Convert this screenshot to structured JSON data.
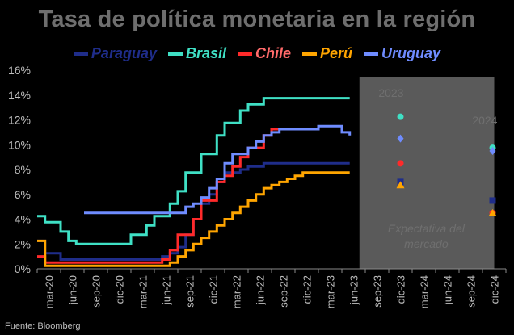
{
  "chart_data": {
    "type": "line",
    "title": "Tasa de política monetaria en la región",
    "source": "Fuente: Bloomberg",
    "xlabel": "",
    "ylabel": "",
    "ylim": [
      0,
      16
    ],
    "yticks": [
      "0%",
      "2%",
      "4%",
      "6%",
      "8%",
      "10%",
      "12%",
      "14%",
      "16%"
    ],
    "x_tick_labels": [
      "mar-20",
      "jun-20",
      "sep-20",
      "dic-20",
      "mar-21",
      "jun-21",
      "sep-21",
      "dic-21",
      "mar-22",
      "jun-22",
      "sep-22",
      "dic-22",
      "mar-23",
      "jun-23",
      "sep-23",
      "dic-23",
      "mar-24",
      "jun-24",
      "sep-24",
      "dic-24"
    ],
    "colors": {
      "Paraguay": "#1f2d8a",
      "Brasil": "#3fe0c5",
      "Chile": "#ff2a2a",
      "Perú": "#ffa500",
      "Uruguay": "#6f8cff"
    },
    "series": [
      {
        "name": "Paraguay",
        "points": [
          [
            0,
            2.25
          ],
          [
            1,
            1.25
          ],
          [
            3,
            0.75
          ],
          [
            12,
            0.75
          ],
          [
            15,
            0.75
          ],
          [
            16,
            1.0
          ],
          [
            17,
            1.25
          ],
          [
            18,
            1.75
          ],
          [
            19,
            2.75
          ],
          [
            20,
            4.0
          ],
          [
            21,
            5.25
          ],
          [
            22,
            6.0
          ],
          [
            23,
            7.0
          ],
          [
            24,
            7.75
          ],
          [
            26,
            8.0
          ],
          [
            27,
            8.25
          ],
          [
            29,
            8.5
          ],
          [
            40,
            8.5
          ]
        ]
      },
      {
        "name": "Brasil",
        "points": [
          [
            0,
            4.25
          ],
          [
            1,
            3.75
          ],
          [
            3,
            3.0
          ],
          [
            4,
            2.25
          ],
          [
            5,
            2.0
          ],
          [
            11,
            2.0
          ],
          [
            12,
            2.75
          ],
          [
            14,
            3.5
          ],
          [
            15,
            4.25
          ],
          [
            17,
            5.25
          ],
          [
            18,
            6.25
          ],
          [
            19,
            7.75
          ],
          [
            21,
            9.25
          ],
          [
            23,
            10.75
          ],
          [
            24,
            11.75
          ],
          [
            26,
            12.75
          ],
          [
            27,
            13.25
          ],
          [
            29,
            13.75
          ],
          [
            40,
            13.75
          ]
        ]
      },
      {
        "name": "Chile",
        "points": [
          [
            0,
            1.0
          ],
          [
            1,
            0.5
          ],
          [
            15,
            0.5
          ],
          [
            16,
            0.75
          ],
          [
            17,
            1.5
          ],
          [
            18,
            2.75
          ],
          [
            20,
            4.0
          ],
          [
            21,
            5.5
          ],
          [
            23,
            7.0
          ],
          [
            24,
            7.5
          ],
          [
            25,
            8.25
          ],
          [
            26,
            9.0
          ],
          [
            27,
            9.75
          ],
          [
            29,
            10.75
          ],
          [
            30,
            11.25
          ],
          [
            36,
            11.25
          ]
        ]
      },
      {
        "name": "Perú",
        "points": [
          [
            0,
            2.25
          ],
          [
            1,
            0.25
          ],
          [
            16,
            0.25
          ],
          [
            17,
            0.5
          ],
          [
            18,
            1.0
          ],
          [
            19,
            1.5
          ],
          [
            20,
            2.0
          ],
          [
            21,
            2.5
          ],
          [
            22,
            3.0
          ],
          [
            23,
            3.5
          ],
          [
            24,
            4.0
          ],
          [
            25,
            4.5
          ],
          [
            26,
            5.0
          ],
          [
            27,
            5.5
          ],
          [
            28,
            6.0
          ],
          [
            29,
            6.5
          ],
          [
            30,
            6.75
          ],
          [
            31,
            7.0
          ],
          [
            32,
            7.25
          ],
          [
            33,
            7.5
          ],
          [
            34,
            7.75
          ],
          [
            40,
            7.75
          ]
        ]
      },
      {
        "name": "Uruguay",
        "points": [
          [
            6,
            4.5
          ],
          [
            18,
            4.5
          ],
          [
            19,
            5.0
          ],
          [
            20,
            5.25
          ],
          [
            21,
            5.75
          ],
          [
            22,
            6.5
          ],
          [
            23,
            7.25
          ],
          [
            24,
            8.5
          ],
          [
            25,
            9.25
          ],
          [
            27,
            9.75
          ],
          [
            28,
            10.25
          ],
          [
            29,
            10.75
          ],
          [
            30,
            11.0
          ],
          [
            31,
            11.25
          ],
          [
            36,
            11.5
          ],
          [
            39,
            11.0
          ],
          [
            40,
            10.75
          ]
        ]
      }
    ],
    "expectations_box": {
      "label": "Expectativa del mercado",
      "years": [
        "2023",
        "2024"
      ]
    },
    "expectations_2023": [
      {
        "name": "Brasil",
        "value": 12.25,
        "marker": "circle"
      },
      {
        "name": "Uruguay",
        "value": 10.5,
        "marker": "diamond"
      },
      {
        "name": "Chile",
        "value": 8.5,
        "marker": "circle"
      },
      {
        "name": "Paraguay",
        "value": 7.0,
        "marker": "square"
      },
      {
        "name": "Perú",
        "value": 6.75,
        "marker": "triangle"
      }
    ],
    "expectations_2024": [
      {
        "name": "Brasil",
        "value": 9.75,
        "marker": "circle"
      },
      {
        "name": "Uruguay",
        "value": 9.5,
        "marker": "diamond"
      },
      {
        "name": "Paraguay",
        "value": 5.5,
        "marker": "square"
      },
      {
        "name": "Chile",
        "value": 4.5,
        "marker": "circle"
      },
      {
        "name": "Perú",
        "value": 4.5,
        "marker": "triangle"
      }
    ]
  }
}
